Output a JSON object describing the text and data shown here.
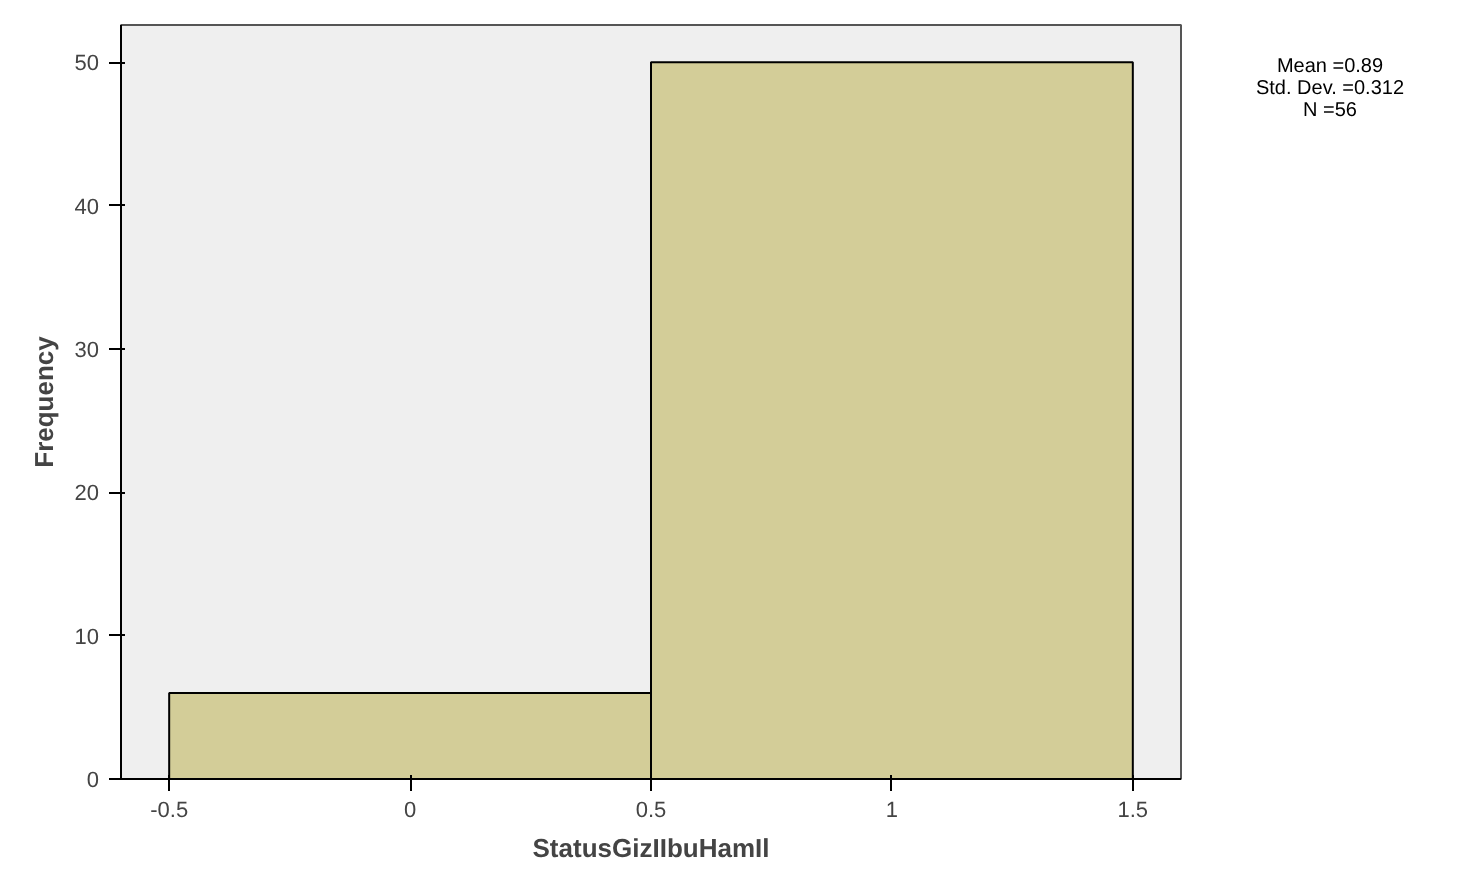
{
  "chart_data": {
    "type": "histogram",
    "xlabel": "StatusGizIIbuHamIl",
    "ylabel": "Frequency",
    "bins": [
      -0.5,
      0.5,
      1.5
    ],
    "values": [
      6,
      50
    ],
    "color": "#d3cd98",
    "xlim": [
      -0.6,
      1.6
    ],
    "ylim": [
      0,
      52.6
    ],
    "xticks": [
      -0.5,
      0,
      0.5,
      1,
      1.5
    ],
    "yticks": [
      0,
      10,
      20,
      30,
      40,
      50
    ],
    "grid": false,
    "annotations": [
      "Mean =0.89",
      "Std. Dev. =0.312",
      "N =56"
    ]
  }
}
